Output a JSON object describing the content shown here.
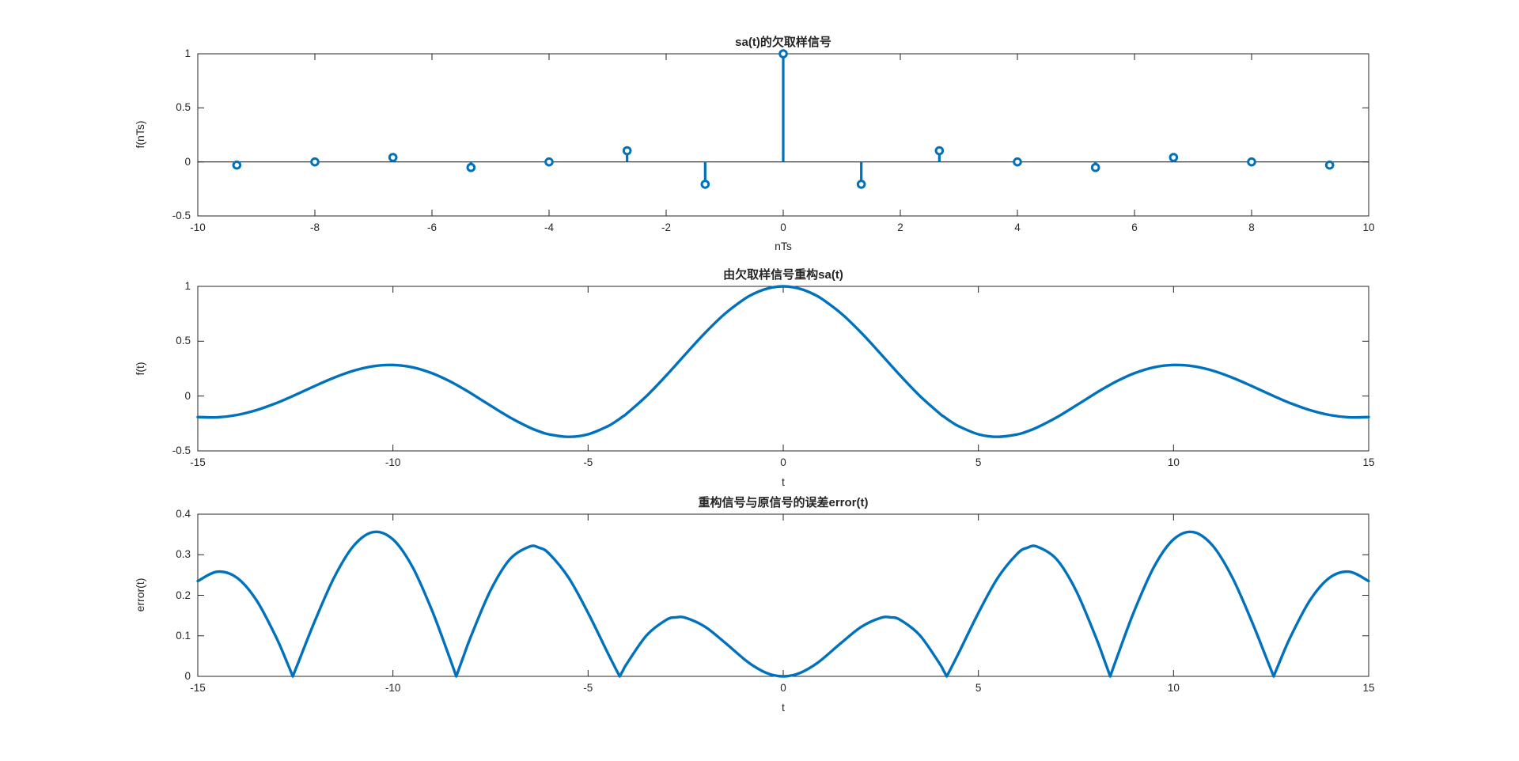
{
  "figure": {
    "background": "#ffffff",
    "axis_color": "#262626",
    "text_color": "#262626",
    "line_color": "#0072BD"
  },
  "chart_data": [
    {
      "type": "stem",
      "title": "sa(t)的欠取样信号",
      "xlabel": "nTs",
      "ylabel": "f(nTs)",
      "xlim": [
        -10,
        10
      ],
      "ylim": [
        -0.5,
        1
      ],
      "xticks": [
        -10,
        -8,
        -6,
        -4,
        -2,
        0,
        2,
        4,
        6,
        8,
        10
      ],
      "yticks": [
        -0.5,
        0,
        0.5,
        1
      ],
      "baseline": 0,
      "marker": "open-circle",
      "color": "#0072BD",
      "x": [
        -9.3333,
        -8,
        -6.6667,
        -5.3333,
        -4,
        -2.6667,
        -1.3333,
        0,
        1.3333,
        2.6667,
        4,
        5.3333,
        6.6667,
        8,
        9.3333
      ],
      "y": [
        -0.0295,
        0,
        0.0413,
        -0.0517,
        0,
        0.1034,
        -0.2067,
        1,
        -0.2067,
        0.1034,
        0,
        -0.0517,
        0.0413,
        0,
        -0.0295
      ]
    },
    {
      "type": "line",
      "title": "由欠取样信号重构sa(t)",
      "xlabel": "t",
      "ylabel": "f(t)",
      "xlim": [
        -15,
        15
      ],
      "ylim": [
        -0.5,
        1
      ],
      "xticks": [
        -15,
        -10,
        -5,
        0,
        5,
        10,
        15
      ],
      "yticks": [
        -0.5,
        0,
        0.5,
        1
      ],
      "color": "#0072BD",
      "x": [
        -15,
        -14.5,
        -14,
        -13.5,
        -13,
        -12.7,
        -12.5664,
        -12.4,
        -12,
        -11.5,
        -11,
        -10.5,
        -10,
        -9.5,
        -9,
        -8.6,
        -8.3776,
        -8.2,
        -8,
        -7.5,
        -7,
        -6.5,
        -6.25,
        -6,
        -5.5,
        -5,
        -4.5,
        -4.3,
        -4.1888,
        -4.1,
        -4,
        -3.5,
        -3,
        -2.75,
        -2.5,
        -2,
        -1.5,
        -1,
        -0.75,
        -0.5,
        -0.25,
        0,
        0.25,
        0.5,
        0.75,
        1,
        1.5,
        2,
        2.5,
        2.75,
        3,
        3.5,
        4,
        4.1,
        4.1888,
        4.3,
        4.5,
        5,
        5.5,
        6,
        6.25,
        6.5,
        7,
        7.5,
        8,
        8.2,
        8.3776,
        8.6,
        9,
        9.5,
        10,
        10.5,
        11,
        11.5,
        12,
        12.4,
        12.5664,
        12.7,
        13,
        13.5,
        14,
        14.5,
        15
      ],
      "y": [
        -0.1916,
        -0.1937,
        -0.1727,
        -0.1288,
        -0.0657,
        -0.021,
        0,
        0.0268,
        0.092,
        0.1689,
        0.2319,
        0.2722,
        0.2835,
        0.2622,
        0.2086,
        0.1451,
        0.1034,
        0.0674,
        0.0247,
        -0.0869,
        -0.1953,
        -0.287,
        -0.3226,
        -0.3494,
        -0.3717,
        -0.3483,
        -0.2757,
        -0.2334,
        -0.2067,
        -0.1839,
        -0.1568,
        0.0011,
        0.1862,
        0.2842,
        0.3837,
        0.5767,
        0.7484,
        0.8838,
        0.9338,
        0.9704,
        0.9925,
        1,
        0.9925,
        0.9704,
        0.9338,
        0.8838,
        0.7484,
        0.5767,
        0.3837,
        0.2842,
        0.1862,
        0.0011,
        -0.1568,
        -0.1839,
        -0.2067,
        -0.2334,
        -0.2757,
        -0.3483,
        -0.3717,
        -0.3494,
        -0.3226,
        -0.287,
        -0.1953,
        -0.0869,
        0.0247,
        0.0674,
        0.1034,
        0.1451,
        0.2086,
        0.2622,
        0.2835,
        0.2722,
        0.2319,
        0.1689,
        0.092,
        0.0268,
        0,
        -0.021,
        -0.0657,
        -0.1288,
        -0.1727,
        -0.1937,
        -0.1916
      ]
    },
    {
      "type": "line",
      "title": "重构信号与原信号的误差error(t)",
      "xlabel": "t",
      "ylabel": "error(t)",
      "xlim": [
        -15,
        15
      ],
      "ylim": [
        0,
        0.4
      ],
      "xticks": [
        -15,
        -10,
        -5,
        0,
        5,
        10,
        15
      ],
      "yticks": [
        0,
        0.1,
        0.2,
        0.3,
        0.4
      ],
      "color": "#0072BD",
      "cusps": [
        -12.5664,
        -8.3776,
        -4.1888,
        4.1888,
        8.3776,
        12.5664
      ],
      "x": [
        -15,
        -14.5,
        -14,
        -13.5,
        -13,
        -12.7,
        -12.5664,
        -12.4,
        -12,
        -11.5,
        -11,
        -10.5,
        -10,
        -9.5,
        -9,
        -8.6,
        -8.3776,
        -8.2,
        -8,
        -7.5,
        -7,
        -6.5,
        -6.25,
        -6,
        -5.5,
        -5,
        -4.5,
        -4.3,
        -4.1888,
        -4.1,
        -4,
        -3.5,
        -3,
        -2.75,
        -2.5,
        -2,
        -1.5,
        -1,
        -0.75,
        -0.5,
        -0.25,
        0,
        0.25,
        0.5,
        0.75,
        1,
        1.5,
        2,
        2.5,
        2.75,
        3,
        3.5,
        4,
        4.1,
        4.1888,
        4.3,
        4.5,
        5,
        5.5,
        6,
        6.25,
        6.5,
        7,
        7.5,
        8,
        8.2,
        8.3776,
        8.6,
        9,
        9.5,
        10,
        10.5,
        11,
        11.5,
        12,
        12.4,
        12.5664,
        12.7,
        13,
        13.5,
        14,
        14.5,
        15
      ],
      "y": [
        0.235,
        0.2582,
        0.2435,
        0.1883,
        0.098,
        0.0315,
        0,
        0.0401,
        0.1367,
        0.2451,
        0.3228,
        0.356,
        0.3379,
        0.2702,
        0.1628,
        0.0598,
        0,
        0.0473,
        0.0989,
        0.212,
        0.2892,
        0.3201,
        0.3172,
        0.3028,
        0.2435,
        0.1565,
        0.0585,
        0.0203,
        0,
        0.0156,
        0.0324,
        0.1013,
        0.1392,
        0.1455,
        0.1443,
        0.1221,
        0.0837,
        0.0424,
        0.0249,
        0.0114,
        0.0029,
        0,
        0.0029,
        0.0114,
        0.0249,
        0.0424,
        0.0837,
        0.1221,
        0.1443,
        0.1455,
        0.1392,
        0.1013,
        0.0324,
        0.0156,
        0,
        0.0203,
        0.0585,
        0.1565,
        0.2435,
        0.3028,
        0.3172,
        0.3201,
        0.2892,
        0.212,
        0.0989,
        0.0473,
        0,
        0.0598,
        0.1628,
        0.2702,
        0.3379,
        0.356,
        0.3228,
        0.2451,
        0.1367,
        0.0401,
        0,
        0.0315,
        0.098,
        0.1883,
        0.2435,
        0.2582,
        0.235
      ]
    }
  ]
}
